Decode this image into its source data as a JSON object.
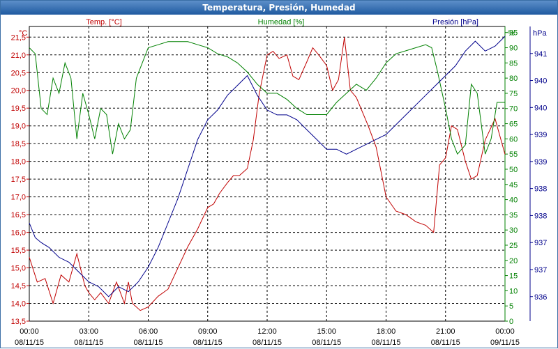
{
  "window": {
    "title": "Temperatura, Presión, Humedad"
  },
  "chart_data": {
    "type": "line",
    "title": "Temperatura, Presión, Humedad",
    "grid": true,
    "legend": "top",
    "x": {
      "ticks": [
        "00:00",
        "03:00",
        "06:00",
        "09:00",
        "12:00",
        "15:00",
        "18:00",
        "21:00",
        "00:00"
      ],
      "dates": [
        "08/11/15",
        "08/11/15",
        "08/11/15",
        "08/11/15",
        "08/11/15",
        "08/11/15",
        "08/11/15",
        "08/11/15",
        "09/11/15"
      ],
      "range_hours": [
        0,
        24
      ]
    },
    "axes": {
      "temp": {
        "unit": "°C",
        "range": [
          13.5,
          21.8
        ],
        "ticks": [
          "13,5",
          "14,0",
          "14,5",
          "15,0",
          "15,5",
          "16,0",
          "16,5",
          "17,0",
          "17,5",
          "18,0",
          "18,5",
          "19,0",
          "19,5",
          "20,0",
          "20,5",
          "21,0",
          "21,5"
        ]
      },
      "hum": {
        "unit": "%",
        "range": [
          0,
          97
        ],
        "ticks": [
          "0",
          "5",
          "10",
          "15",
          "20",
          "25",
          "30",
          "35",
          "40",
          "45",
          "50",
          "55",
          "60",
          "65",
          "70",
          "75",
          "80",
          "85",
          "90",
          "95"
        ]
      },
      "pres": {
        "unit": "hPa",
        "range": [
          935.5,
          941.5
        ],
        "ticks": [
          "936",
          "937",
          "937",
          "938",
          "938",
          "939",
          "939",
          "940",
          "940",
          "941"
        ]
      }
    },
    "series": [
      {
        "name": "Temp. [°C]",
        "axis": "temp",
        "color": "#c00000",
        "x": [
          0,
          0.4,
          0.8,
          1.2,
          1.6,
          2,
          2.4,
          2.8,
          3,
          3.3,
          3.6,
          4,
          4.4,
          4.8,
          5,
          5.2,
          5.6,
          6,
          6.5,
          7,
          7.5,
          8,
          8.5,
          9,
          9.3,
          9.6,
          10,
          10.3,
          10.6,
          11,
          11.3,
          11.6,
          12,
          12.3,
          12.6,
          13,
          13.3,
          13.6,
          14,
          14.3,
          14.6,
          15,
          15.3,
          15.6,
          15.9,
          16.2,
          16.5,
          16.8,
          17.1,
          17.5,
          18,
          18.5,
          19,
          19.5,
          20,
          20.4,
          20.7,
          21,
          21.3,
          21.6,
          22,
          22.3,
          22.6,
          23,
          23.5,
          24
        ],
        "y": [
          15.3,
          14.6,
          14.7,
          14.0,
          14.8,
          14.6,
          15.4,
          14.5,
          14.3,
          14.1,
          14.3,
          14.0,
          14.6,
          14.0,
          14.6,
          14.0,
          13.8,
          13.9,
          14.2,
          14.4,
          15.0,
          15.6,
          16.1,
          16.7,
          16.8,
          17.1,
          17.4,
          17.6,
          17.6,
          17.8,
          18.6,
          19.9,
          21.0,
          21.1,
          20.9,
          21.0,
          20.4,
          20.3,
          20.8,
          21.2,
          21.0,
          20.7,
          20.0,
          20.3,
          21.5,
          20.0,
          19.8,
          19.4,
          19.0,
          18.4,
          17.0,
          16.6,
          16.5,
          16.3,
          16.2,
          16.0,
          17.9,
          18.1,
          19.0,
          18.9,
          18.0,
          17.5,
          17.6,
          18.6,
          19.2,
          18.2
        ]
      },
      {
        "name": "Humedad [%]",
        "axis": "hum",
        "color": "#008000",
        "x": [
          0,
          0.3,
          0.6,
          0.9,
          1.2,
          1.5,
          1.8,
          2.1,
          2.4,
          2.7,
          3,
          3.3,
          3.6,
          3.9,
          4.2,
          4.5,
          4.8,
          5.1,
          5.4,
          5.7,
          6,
          6.5,
          7,
          7.5,
          8,
          8.5,
          9,
          9.5,
          10,
          10.5,
          11,
          11.5,
          12,
          12.5,
          13,
          13.5,
          14,
          14.5,
          15,
          15.5,
          16,
          16.5,
          17,
          17.5,
          18,
          18.5,
          19,
          19.5,
          20,
          20.3,
          20.6,
          21,
          21.3,
          21.6,
          22,
          22.3,
          22.6,
          23,
          23.3,
          23.6,
          24
        ],
        "y": [
          90,
          88,
          70,
          68,
          80,
          75,
          85,
          80,
          60,
          75,
          68,
          60,
          70,
          68,
          55,
          65,
          60,
          63,
          80,
          85,
          90,
          91,
          92,
          92,
          92,
          91,
          90,
          88,
          87,
          85,
          82,
          78,
          75,
          75,
          73,
          70,
          68,
          68,
          68,
          72,
          75,
          78,
          76,
          80,
          85,
          88,
          89,
          90,
          91,
          90,
          82,
          70,
          60,
          55,
          58,
          78,
          75,
          55,
          60,
          72,
          72
        ]
      },
      {
        "name": "Presión [hPa]",
        "axis": "pres",
        "color": "#00008b",
        "x": [
          0,
          0.3,
          0.6,
          1,
          1.5,
          2,
          2.5,
          3,
          3.5,
          4,
          4.5,
          5,
          5.5,
          6,
          6.5,
          7,
          7.5,
          8,
          8.5,
          9,
          9.5,
          10,
          10.5,
          11,
          11.5,
          12,
          12.5,
          13,
          13.5,
          14,
          14.5,
          15,
          15.5,
          16,
          16.5,
          17,
          17.5,
          18,
          18.5,
          19,
          19.5,
          20,
          20.5,
          21,
          21.5,
          22,
          22.5,
          23,
          23.5,
          24
        ],
        "y": [
          937.5,
          937.2,
          937.1,
          937.0,
          936.8,
          936.7,
          936.5,
          936.3,
          936.2,
          936.0,
          936.2,
          936.1,
          936.3,
          936.6,
          937.0,
          937.5,
          938.0,
          938.6,
          939.2,
          939.6,
          939.8,
          940.1,
          940.3,
          940.5,
          940.1,
          939.8,
          939.7,
          939.7,
          939.6,
          939.4,
          939.2,
          939.0,
          939.0,
          938.9,
          939.0,
          939.1,
          939.2,
          939.3,
          939.5,
          939.7,
          939.9,
          940.1,
          940.3,
          940.5,
          940.7,
          941.0,
          941.2,
          941.0,
          941.1,
          941.3
        ]
      }
    ]
  }
}
